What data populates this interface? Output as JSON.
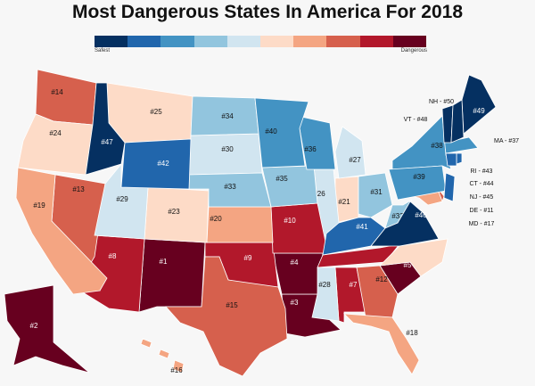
{
  "title": "Most Dangerous States In America For 2018",
  "legend": {
    "low_label": "Safest",
    "high_label": "Dangerous",
    "colors": [
      "#053061",
      "#2166ac",
      "#4393c3",
      "#92c5de",
      "#d1e5f0",
      "#fddbc7",
      "#f4a582",
      "#d6604d",
      "#b2182b",
      "#67001f"
    ]
  },
  "states": [
    {
      "abbr": "NM",
      "rank": 1
    },
    {
      "abbr": "AK",
      "rank": 2
    },
    {
      "abbr": "LA",
      "rank": 3
    },
    {
      "abbr": "AR",
      "rank": 4
    },
    {
      "abbr": "SC",
      "rank": 5
    },
    {
      "abbr": "TN",
      "rank": 6
    },
    {
      "abbr": "AL",
      "rank": 7
    },
    {
      "abbr": "AZ",
      "rank": 8
    },
    {
      "abbr": "OK",
      "rank": 9
    },
    {
      "abbr": "MO",
      "rank": 10
    },
    {
      "abbr": "DE",
      "rank": 11
    },
    {
      "abbr": "GA",
      "rank": 12
    },
    {
      "abbr": "NV",
      "rank": 13
    },
    {
      "abbr": "WA",
      "rank": 14
    },
    {
      "abbr": "TX",
      "rank": 15
    },
    {
      "abbr": "HI",
      "rank": 16
    },
    {
      "abbr": "MD",
      "rank": 17
    },
    {
      "abbr": "FL",
      "rank": 18
    },
    {
      "abbr": "CA",
      "rank": 19
    },
    {
      "abbr": "KS",
      "rank": 20
    },
    {
      "abbr": "IN",
      "rank": 21
    },
    {
      "abbr": "NC",
      "rank": 22
    },
    {
      "abbr": "CO",
      "rank": 23
    },
    {
      "abbr": "OR",
      "rank": 24
    },
    {
      "abbr": "MT",
      "rank": 25
    },
    {
      "abbr": "IL",
      "rank": 26
    },
    {
      "abbr": "MI",
      "rank": 27
    },
    {
      "abbr": "MS",
      "rank": 28
    },
    {
      "abbr": "UT",
      "rank": 29
    },
    {
      "abbr": "SD",
      "rank": 30
    },
    {
      "abbr": "OH",
      "rank": 31
    },
    {
      "abbr": "WV",
      "rank": 32
    },
    {
      "abbr": "NE",
      "rank": 33
    },
    {
      "abbr": "ND",
      "rank": 34
    },
    {
      "abbr": "IA",
      "rank": 35
    },
    {
      "abbr": "WI",
      "rank": 36
    },
    {
      "abbr": "MA",
      "rank": 37
    },
    {
      "abbr": "NY",
      "rank": 38
    },
    {
      "abbr": "PA",
      "rank": 39
    },
    {
      "abbr": "MN",
      "rank": 40
    },
    {
      "abbr": "KY",
      "rank": 41
    },
    {
      "abbr": "WY",
      "rank": 42
    },
    {
      "abbr": "RI",
      "rank": 43
    },
    {
      "abbr": "CT",
      "rank": 44
    },
    {
      "abbr": "NJ",
      "rank": 45
    },
    {
      "abbr": "VA",
      "rank": 46
    },
    {
      "abbr": "ID",
      "rank": 47
    },
    {
      "abbr": "VT",
      "rank": 48
    },
    {
      "abbr": "ME",
      "rank": 49
    },
    {
      "abbr": "NH",
      "rank": 50
    }
  ],
  "callouts": [
    "NH - #50",
    "VT - #48",
    "MA - #37",
    "RI - #43",
    "CT - #44",
    "NJ - #45",
    "DE - #11",
    "MD - #17"
  ]
}
